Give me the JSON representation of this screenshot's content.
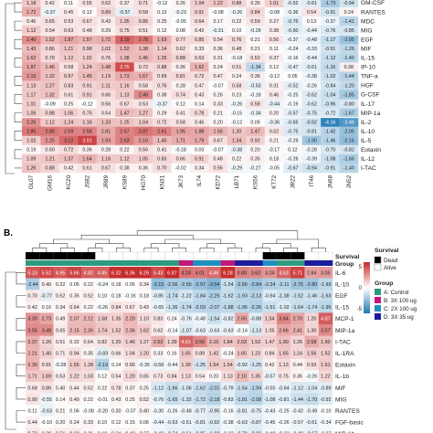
{
  "panel_b_label": "B.",
  "legend": {
    "survival_title": "Survival",
    "survival_items": [
      {
        "label": "Dead",
        "color": "#000000"
      },
      {
        "label": "Alive",
        "color": "#ffffff"
      }
    ],
    "group_title": "Group",
    "group_items": [
      {
        "label": "A: Control",
        "color": "#2e9a80"
      },
      {
        "label": "B: 3X 100 ug",
        "color": "#c2187a"
      },
      {
        "label": "C: 2X 100 ug",
        "color": "#1f8fc0"
      },
      {
        "label": "D: 3X 35 ug",
        "color": "#1c1c9c"
      }
    ],
    "scale_ticks": [
      "5",
      "0",
      "-5"
    ],
    "scale_colors": {
      "high": "#c62828",
      "mid": "#ffffff",
      "low": "#1f78b4"
    }
  },
  "chart_data": [
    {
      "type": "heatmap",
      "panel": "A",
      "row_labels": [
        "GM-CSF",
        "RANTES",
        "MDC",
        "MIG",
        "EGF",
        "MIF",
        "IL-15",
        "IP-10",
        "TNF-a",
        "HGF",
        "G-CSF",
        "IL-17",
        "MIP-1a",
        "IL-2",
        "IL-10",
        "IL-5",
        "Eotaxin",
        "IL-12",
        "I-TAC"
      ],
      "col_labels": [
        "GL07",
        "GM16",
        "KC20",
        "JS82",
        "JR89",
        "KS89",
        "HG70",
        "KN31",
        "JK73",
        "IL74",
        "KD72",
        "LB71",
        "KS56",
        "KT72",
        "JR22",
        "IT46",
        "JN68",
        "JN52"
      ],
      "values": [
        [
          1.18,
          0.42,
          0.11,
          0.55,
          0.62,
          0.37,
          0.71,
          -0.12,
          0.26,
          1.04,
          1.22,
          0.88,
          0.35,
          1.01,
          -0.52,
          -0.61,
          -1.73,
          -0.94
        ],
        [
          1.72,
          -0.37,
          0.45,
          0.12,
          0.89,
          -0.57,
          0.58,
          0.13,
          -0.23,
          0.91,
          -0.08,
          -0.26,
          0.84,
          -0.08,
          -0.36,
          0.54,
          -0.91,
          0.24
        ],
        [
          0.46,
          0.65,
          0.53,
          0.67,
          0.43,
          1.05,
          0.86,
          0.25,
          -0.05,
          0.64,
          0.17,
          0.22,
          0.59,
          0.27,
          -0.76,
          0.13,
          -0.37,
          -1.41
        ],
        [
          1.12,
          0.54,
          0.63,
          0.48,
          0.29,
          0.75,
          0.51,
          0.12,
          0.08,
          0.42,
          -0.31,
          0.1,
          -0.29,
          0.38,
          -0.6,
          -0.44,
          -0.76,
          -0.85
        ],
        [
          2.4,
          1.52,
          1.87,
          1.57,
          1.72,
          3.19,
          2.78,
          1.63,
          0.77,
          0.85,
          0.54,
          0.76,
          0.21,
          0.56,
          -0.37,
          -0.48,
          -1.17,
          -2.05
        ],
        [
          1.43,
          0.86,
          1.21,
          0.98,
          1.02,
          1.52,
          1.38,
          1.14,
          0.62,
          0.33,
          0.36,
          0.48,
          0.21,
          0.11,
          -0.24,
          -0.33,
          -0.91,
          -1.26
        ],
        [
          1.62,
          0.79,
          1.12,
          1.02,
          0.76,
          1.38,
          1.46,
          1.25,
          0.88,
          0.63,
          0.31,
          -0.18,
          0.52,
          0.37,
          -0.16,
          -0.44,
          -1.12,
          -1.4
        ],
        [
          1.87,
          1.46,
          0.58,
          1.24,
          1.48,
          3.75,
          0.72,
          0.88,
          0.36,
          1.62,
          0.24,
          0.51,
          -1.34,
          0.12,
          -0.47,
          -0.61,
          -1.16,
          0.38
        ],
        [
          2.15,
          1.32,
          0.97,
          1.45,
          1.19,
          1.73,
          1.67,
          0.69,
          0.81,
          0.72,
          0.47,
          0.24,
          0.36,
          -0.12,
          0.05,
          -0.38,
          -1.02,
          -1.44
        ],
        [
          1.13,
          1.27,
          0.83,
          0.91,
          1.11,
          1.16,
          0.58,
          0.76,
          0.28,
          0.47,
          -0.07,
          0.58,
          -0.53,
          0.31,
          -0.52,
          -0.26,
          -0.84,
          -1.2
        ],
        [
          1.17,
          1.32,
          0.61,
          0.91,
          0.66,
          1.13,
          2.48,
          0.38,
          0.74,
          0.43,
          0.26,
          0.23,
          -0.18,
          0.46,
          -0.25,
          -0.62,
          -1.04,
          -1.85
        ],
        [
          1.01,
          -0.09,
          0.25,
          -0.12,
          0.56,
          0.67,
          0.53,
          -0.37,
          0.12,
          0.14,
          0.33,
          -0.26,
          0.58,
          -0.44,
          -0.19,
          -0.62,
          -0.96,
          -0.8
        ],
        [
          1.05,
          0.88,
          1.06,
          0.75,
          0.54,
          1.47,
          1.27,
          0.29,
          0.41,
          0.78,
          0.21,
          -0.15,
          -0.34,
          0.2,
          -0.57,
          -0.75,
          -0.72,
          -1.67
        ],
        [
          2.26,
          1.12,
          1.24,
          1.16,
          1.33,
          1.25,
          1.04,
          0.72,
          0.58,
          0.46,
          0.2,
          -0.12,
          0.09,
          -0.36,
          -0.65,
          -0.92,
          -4.16,
          -3.46
        ],
        [
          2.85,
          2.8,
          2.59,
          2.58,
          1.81,
          2.57,
          2.87,
          2.61,
          1.95,
          1.88,
          1.56,
          1.2,
          1.47,
          0.52,
          -0.75,
          -0.81,
          -1.42,
          -2.05
        ],
        [
          1.02,
          2.25,
          3.12,
          3.91,
          1.93,
          2.63,
          2.1,
          1.45,
          1.71,
          1.79,
          0.67,
          1.34,
          0.92,
          0.21,
          -0.29,
          -1.9,
          -1.46,
          -2.16
        ],
        [
          0.19,
          0.5,
          0.72,
          0.36,
          0.28,
          0.22,
          0.56,
          0.41,
          -0.18,
          0.03,
          -0.07,
          -0.38,
          0.2,
          -0.17,
          0.12,
          -0.28,
          -0.7,
          -0.82
        ],
        [
          1.09,
          1.21,
          1.37,
          1.64,
          1.16,
          1.12,
          1.05,
          0.83,
          0.66,
          0.91,
          0.48,
          0.22,
          0.35,
          0.18,
          -0.26,
          -0.39,
          -1.08,
          -1.66
        ],
        [
          1.26,
          0.88,
          0.42,
          0.61,
          0.67,
          0.38,
          0.36,
          0.7,
          -0.02,
          0.34,
          0.56,
          -0.29,
          -0.27,
          -0.05,
          -0.67,
          -0.94,
          -0.91,
          -1.4
        ]
      ]
    },
    {
      "type": "heatmap",
      "panel": "B",
      "row_labels": [
        "IL-6",
        "IL-10",
        "EGF",
        "IL-15",
        "MCP-1",
        "MIP-1a",
        "I-TAC",
        "IL-1RA",
        "Eotaxin",
        "IL-1b",
        "MIF",
        "MIG",
        "RANTES",
        "FGF-basic",
        "MIP-1b"
      ],
      "survival": [
        "Dead",
        "Dead",
        "Dead",
        "Dead",
        "Dead",
        "Alive",
        "Alive",
        "Alive",
        "Alive",
        "Alive",
        "Alive",
        "Alive",
        "Alive",
        "Alive",
        "Alive",
        "Alive",
        "Alive",
        "Dead",
        "Dead",
        "Dead",
        "Alive",
        "Alive"
      ],
      "group": [
        "A: Control",
        "A: Control",
        "A: Control",
        "A: Control",
        "A: Control",
        "A: Control",
        "A: Control",
        "A: Control",
        "A: Control",
        "A: Control",
        "A: Control",
        "B: 3X 100 ug",
        "C: 2X 100 ug",
        "C: 2X 100 ug",
        "B: 3X 100 ug",
        "D: 3X 35 ug",
        "D: 3X 35 ug",
        "C: 2X 100 ug",
        "A: Control",
        "A: Control",
        "D: 3X 35 ug",
        "D: 3X 35 ug"
      ],
      "values": [
        [
          5.1,
          5.52,
          4.95,
          5.66,
          4.82,
          4.85,
          6.32,
          6.36,
          6.29,
          5.43,
          6.87,
          4.24,
          4.01,
          4.46,
          6.28,
          3.8,
          3.62,
          3.24,
          4.63,
          5.71,
          2.84,
          3.05
        ],
        [
          -2.44,
          0.4,
          0.22,
          0.05,
          0.22,
          -0.24,
          0.18,
          0.05,
          0.34,
          -3.15,
          -2.56,
          -2.55,
          -2.97,
          -3.54,
          -1.54,
          -2.56,
          -2.84,
          -2.24,
          -2.11,
          -2.75,
          -2.8,
          -1.93
        ],
        [
          0.7,
          -0.77,
          0.52,
          0.35,
          0.52,
          0.1,
          0.18,
          -0.16,
          0.18,
          -0.85,
          -1.74,
          -1.22,
          -1.84,
          -2.25,
          -1.62,
          -1.93,
          -2.13,
          -0.94,
          -1.38,
          -1.52,
          -1.46,
          -1.63
        ],
        [
          0.42,
          0.16,
          0.34,
          0.64,
          0.22,
          -0.26,
          0.84,
          0.67,
          0.43,
          -0.65,
          -1.36,
          -1.74,
          -2.03,
          -2.07,
          -1.88,
          -1.95,
          -2.26,
          -1.51,
          -1.02,
          -1.64,
          -1.74,
          -1.95
        ],
        [
          3.3,
          2.73,
          0.49,
          2.07,
          2.12,
          1.58,
          1.35,
          2.2,
          1.1,
          0.83,
          0.24,
          -0.76,
          -0.48,
          -1.54,
          -0.82,
          2.65,
          -0.88,
          1.54,
          3.64,
          2.7,
          1.2,
          4.87
        ],
        [
          3.55,
          3.49,
          0.65,
          2.15,
          2.26,
          1.74,
          1.52,
          2.06,
          1.62,
          0.62,
          -0.14,
          -1.07,
          -0.63,
          -0.63,
          -0.63,
          -0.14,
          -1.13,
          1.05,
          2.66,
          2.41,
          1.3,
          3.57
        ],
        [
          2.37,
          1.26,
          0.51,
          0.32,
          0.64,
          0.82,
          1.2,
          1.46,
          1.27,
          2.52,
          1.39,
          4.61,
          3.5,
          2.1,
          1.84,
          2.03,
          1.52,
          1.47,
          1.9,
          1.26,
          2.58,
          1.9
        ],
        [
          2.21,
          1.4,
          0.71,
          0.94,
          0.35,
          -0.83,
          0.66,
          1.04,
          1.2,
          0.33,
          0.16,
          1.65,
          0.89,
          1.42,
          -0.24,
          1.65,
          1.23,
          0.84,
          1.65,
          1.24,
          1.56,
          1.52
        ],
        [
          2.3,
          0.91,
          -0.28,
          1.55,
          1.28,
          -2.19,
          0.14,
          0.66,
          -0.35,
          -0.58,
          -0.44,
          1.39,
          -1.25,
          1.54,
          1.54,
          -0.92,
          -1.25,
          0.42,
          1.13,
          0.44,
          0.93,
          1.61
        ],
        [
          1.71,
          1.69,
          0.53,
          1.22,
          1.03,
          0.12,
          0.54,
          1.2,
          0.65,
          0.73,
          0.84,
          1.13,
          0.54,
          0.2,
          1.13,
          2.1,
          1.35,
          -0.57,
          0.75,
          0.36,
          -0.26,
          1.22
        ],
        [
          0.68,
          0.86,
          0.4,
          0.44,
          0.52,
          0.22,
          0.78,
          0.37,
          0.25,
          -1.12,
          -1.66,
          -1.06,
          -1.62,
          -2.01,
          -0.79,
          -1.54,
          -1.94,
          -0.55,
          -0.64,
          -1.12,
          -1.04,
          -0.89
        ],
        [
          0.9,
          -0.55,
          0.14,
          0.49,
          0.22,
          -0.01,
          0.43,
          0.25,
          0.52,
          -0.76,
          -1.65,
          -1.32,
          -1.72,
          -2.18,
          -0.83,
          -1.81,
          -2.08,
          -1.08,
          -0.81,
          -1.44,
          -1.7,
          -0.92
        ],
        [
          0.11,
          -0.63,
          0.21,
          0.06,
          -0.08,
          -0.2,
          0.3,
          -0.07,
          0.4,
          -0.3,
          -0.26,
          -0.48,
          -0.77,
          -0.95,
          -0.16,
          -0.81,
          -0.75,
          -0.43,
          -0.25,
          -0.42,
          -0.49,
          -0.1
        ],
        [
          0.44,
          -0.1,
          0.2,
          0.24,
          0.33,
          0.1,
          0.12,
          0.15,
          0.06,
          -0.44,
          -0.63,
          -0.51,
          -0.81,
          -0.92,
          -0.38,
          -0.63,
          -0.87,
          -0.45,
          -0.26,
          -0.57,
          -0.61,
          -0.34
        ],
        [
          0.73,
          0.38,
          0.56,
          0.6,
          0.26,
          0.18,
          0.34,
          0.42,
          0.27,
          -0.42,
          -0.74,
          -0.61,
          -0.85,
          -1.02,
          -0.33,
          -0.79,
          -0.92,
          -0.4,
          -0.33,
          -0.48,
          -0.67,
          -0.27
        ]
      ]
    }
  ]
}
